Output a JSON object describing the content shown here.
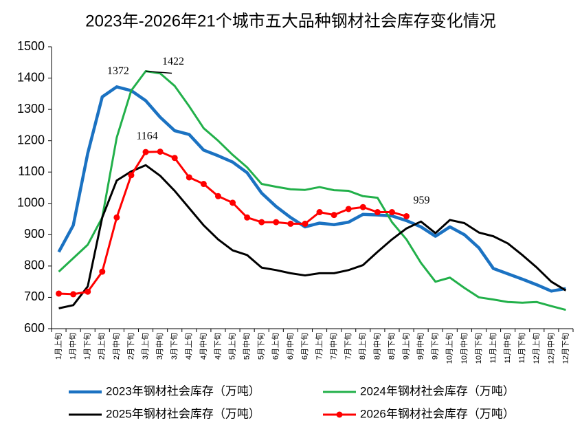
{
  "chart_data": {
    "type": "line",
    "title": "2023年-2026年21个城市五大品种钢材社会库存变化情况",
    "categories": [
      "1月上旬",
      "1月中旬",
      "1月下旬",
      "2月上旬",
      "2月中旬",
      "2月下旬",
      "3月上旬",
      "3月中旬",
      "3月下旬",
      "4月上旬",
      "4月中旬",
      "4月下旬",
      "5月上旬",
      "5月中旬",
      "5月下旬",
      "6月上旬",
      "6月中旬",
      "6月下旬",
      "7月上旬",
      "7月中旬",
      "7月下旬",
      "8月上旬",
      "8月中旬",
      "8月下旬",
      "9月上旬",
      "9月中旬",
      "9月下旬",
      "10月上旬",
      "10月中旬",
      "10月下旬",
      "11月上旬",
      "11月中旬",
      "11月下旬",
      "12月上旬",
      "12月中旬",
      "12月下旬"
    ],
    "series": [
      {
        "name": "2023年钢材社会库存（万吨）",
        "color": "#1b72c2",
        "width": 4.5,
        "markers": false,
        "values": [
          845,
          930,
          1160,
          1340,
          1372,
          1360,
          1328,
          1275,
          1232,
          1220,
          1170,
          1152,
          1132,
          1098,
          1033,
          990,
          955,
          925,
          937,
          932,
          940,
          965,
          963,
          960,
          945,
          925,
          895,
          925,
          900,
          858,
          792,
          775,
          758,
          740,
          720,
          728
        ],
        "value_labels": [
          null,
          null,
          null,
          null,
          "1372",
          null,
          null,
          null,
          null,
          null,
          null,
          null,
          null,
          null,
          null,
          null,
          null,
          null,
          null,
          null,
          null,
          null,
          null,
          null,
          null,
          null,
          null,
          null,
          null,
          null,
          null,
          null,
          null,
          null,
          null,
          null
        ]
      },
      {
        "name": "2024年钢材社会库存（万吨）",
        "color": "#22b04a",
        "width": 3,
        "markers": false,
        "values": [
          782,
          825,
          868,
          955,
          1210,
          1360,
          1422,
          1415,
          1375,
          1310,
          1240,
          1200,
          1155,
          1115,
          1062,
          1053,
          1045,
          1043,
          1052,
          1042,
          1040,
          1023,
          1018,
          940,
          885,
          810,
          750,
          763,
          730,
          700,
          693,
          685,
          683,
          685,
          672,
          660
        ],
        "value_labels": [
          null,
          null,
          null,
          null,
          null,
          null,
          "1422",
          null,
          null,
          null,
          null,
          null,
          null,
          null,
          null,
          null,
          null,
          null,
          null,
          null,
          null,
          null,
          null,
          null,
          null,
          null,
          null,
          null,
          null,
          null,
          null,
          null,
          null,
          null,
          null,
          null
        ]
      },
      {
        "name": "2025年钢材社会库存（万吨）",
        "color": "#000000",
        "width": 3,
        "markers": false,
        "values": [
          665,
          675,
          735,
          955,
          1073,
          1102,
          1122,
          1088,
          1040,
          985,
          930,
          885,
          850,
          835,
          795,
          787,
          777,
          770,
          777,
          777,
          787,
          803,
          845,
          885,
          920,
          942,
          905,
          947,
          937,
          907,
          895,
          872,
          835,
          795,
          750,
          722
        ],
        "value_labels": [
          null,
          null,
          null,
          null,
          null,
          null,
          null,
          null,
          null,
          null,
          null,
          null,
          null,
          null,
          null,
          null,
          null,
          null,
          null,
          null,
          null,
          null,
          null,
          null,
          null,
          null,
          null,
          null,
          null,
          null,
          null,
          null,
          null,
          null,
          null,
          null
        ]
      },
      {
        "name": "2026年钢材社会库存（万吨）",
        "color": "#ff0000",
        "width": 3,
        "markers": true,
        "values": [
          712,
          710,
          718,
          782,
          955,
          1090,
          1164,
          1165,
          1145,
          1083,
          1062,
          1023,
          1002,
          955,
          940,
          940,
          935,
          935,
          972,
          963,
          982,
          988,
          972,
          972,
          959,
          null,
          null,
          null,
          null,
          null,
          null,
          null,
          null,
          null,
          null,
          null
        ],
        "value_labels": [
          null,
          null,
          null,
          null,
          null,
          null,
          "1164",
          null,
          null,
          null,
          null,
          null,
          null,
          null,
          null,
          null,
          null,
          null,
          null,
          null,
          null,
          null,
          null,
          null,
          "959",
          null,
          null,
          null,
          null,
          null,
          null,
          null,
          null,
          null,
          null,
          null
        ]
      }
    ],
    "ylim": [
      600,
      1500
    ],
    "yticks": [
      600,
      700,
      800,
      900,
      1000,
      1100,
      1200,
      1300,
      1400,
      1500
    ],
    "grid": false
  }
}
